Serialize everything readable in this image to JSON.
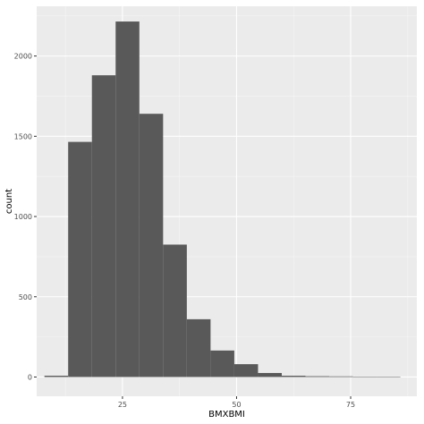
{
  "chart_data": {
    "type": "bar",
    "title": "",
    "xlabel": "BMXBMI",
    "ylabel": "count",
    "xlim": [
      6.2,
      89.5
    ],
    "ylim": [
      -120,
      2310
    ],
    "x_ticks": [
      25,
      50,
      75
    ],
    "x_tick_labels": [
      "25",
      "50",
      "75"
    ],
    "y_ticks": [
      0,
      500,
      1000,
      1500,
      2000
    ],
    "y_tick_labels": [
      "0",
      "500",
      "1000",
      "1500",
      "2000"
    ],
    "grid": true,
    "bin_width": 5.2,
    "bins": [
      {
        "x_start": 7.9,
        "x_end": 13.1,
        "count": 8
      },
      {
        "x_start": 13.1,
        "x_end": 18.3,
        "count": 1465
      },
      {
        "x_start": 18.3,
        "x_end": 23.5,
        "count": 1880
      },
      {
        "x_start": 23.5,
        "x_end": 28.7,
        "count": 2215
      },
      {
        "x_start": 28.7,
        "x_end": 33.9,
        "count": 1640
      },
      {
        "x_start": 33.9,
        "x_end": 39.1,
        "count": 825
      },
      {
        "x_start": 39.1,
        "x_end": 44.3,
        "count": 360
      },
      {
        "x_start": 44.3,
        "x_end": 49.5,
        "count": 165
      },
      {
        "x_start": 49.5,
        "x_end": 54.7,
        "count": 80
      },
      {
        "x_start": 54.7,
        "x_end": 59.9,
        "count": 25
      },
      {
        "x_start": 59.9,
        "x_end": 65.1,
        "count": 8
      },
      {
        "x_start": 65.1,
        "x_end": 70.3,
        "count": 5
      },
      {
        "x_start": 70.3,
        "x_end": 75.5,
        "count": 4
      },
      {
        "x_start": 75.5,
        "x_end": 80.7,
        "count": 2
      },
      {
        "x_start": 80.7,
        "x_end": 85.9,
        "count": 1
      }
    ],
    "colors": {
      "panel_background": "#ebebeb",
      "grid_major": "#ffffff",
      "grid_minor": "#f5f5f5",
      "bar_fill": "#595959"
    }
  }
}
